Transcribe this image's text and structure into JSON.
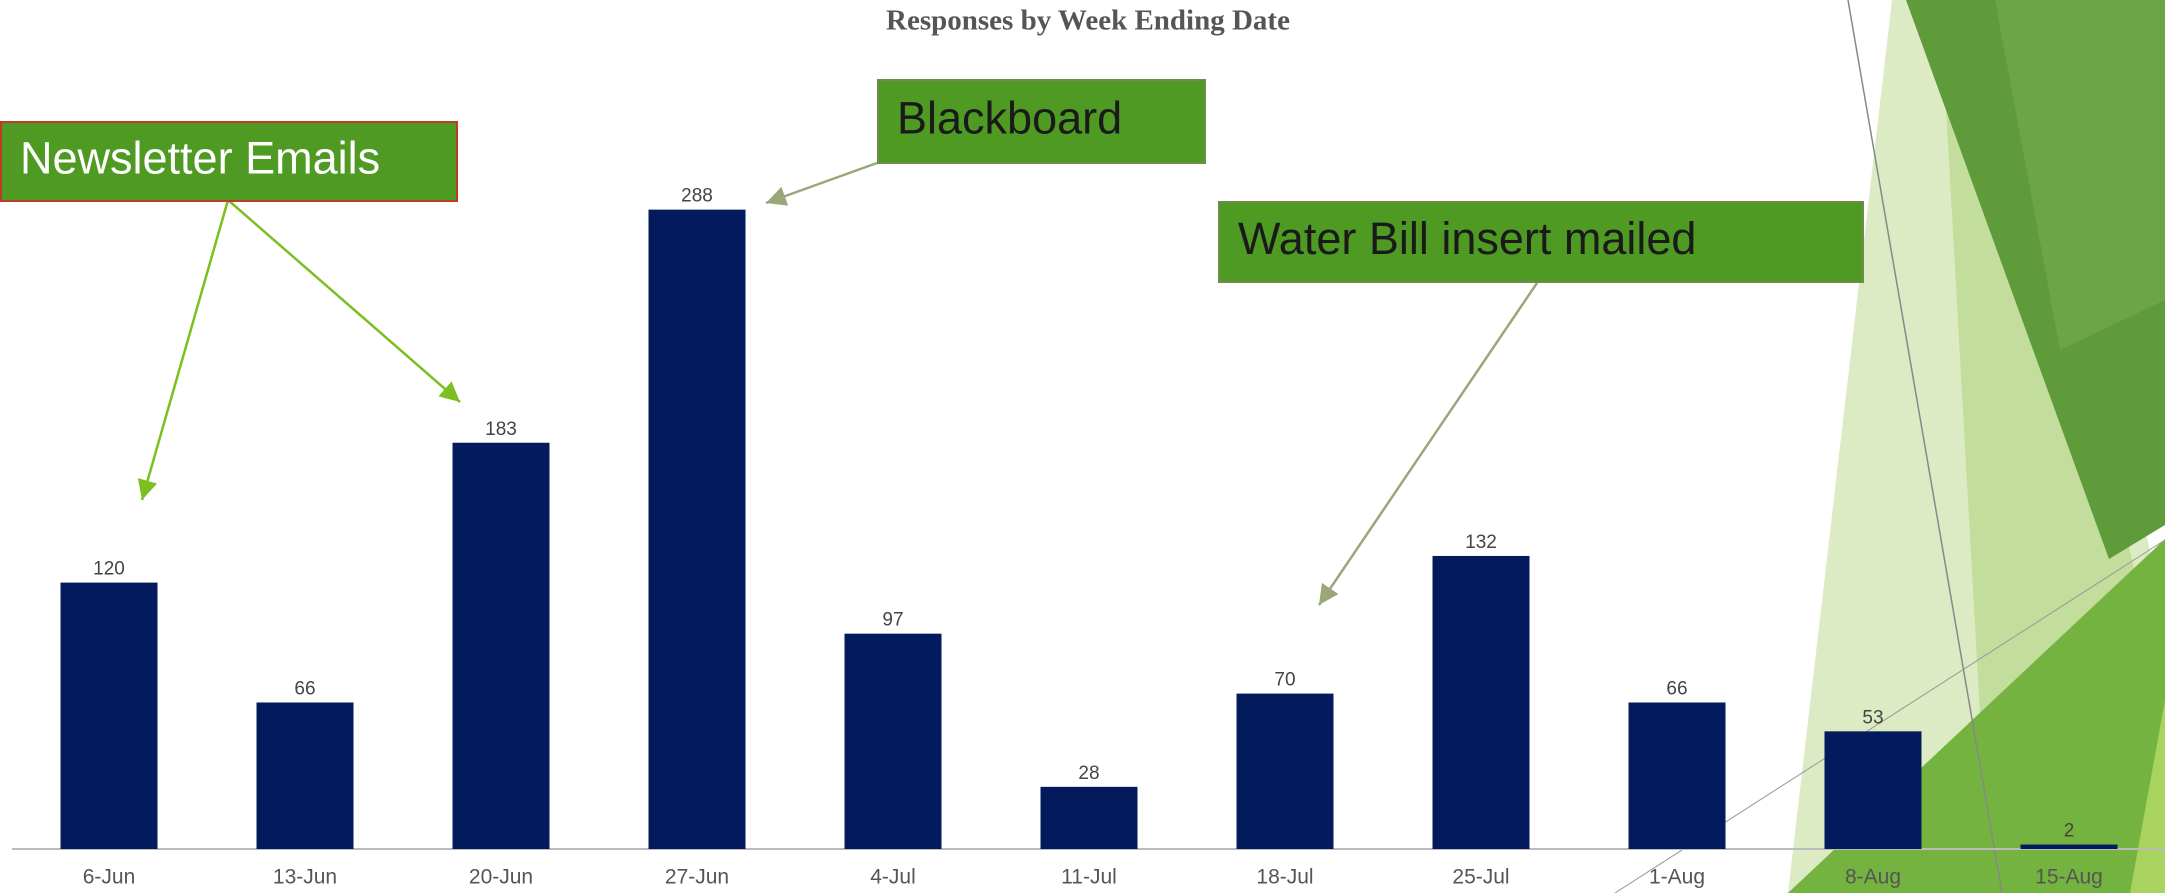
{
  "chart_data": {
    "type": "bar",
    "title": "Responses by Week Ending Date",
    "categories": [
      "6-Jun",
      "13-Jun",
      "20-Jun",
      "27-Jun",
      "4-Jul",
      "11-Jul",
      "18-Jul",
      "25-Jul",
      "1-Aug",
      "8-Aug",
      "15-Aug"
    ],
    "values": [
      120,
      66,
      183,
      288,
      97,
      28,
      70,
      132,
      66,
      53,
      2
    ],
    "color": "#031a5c",
    "annotations": [
      "Newsletter Emails",
      "Blackboard",
      "Water Bill insert mailed"
    ]
  }
}
